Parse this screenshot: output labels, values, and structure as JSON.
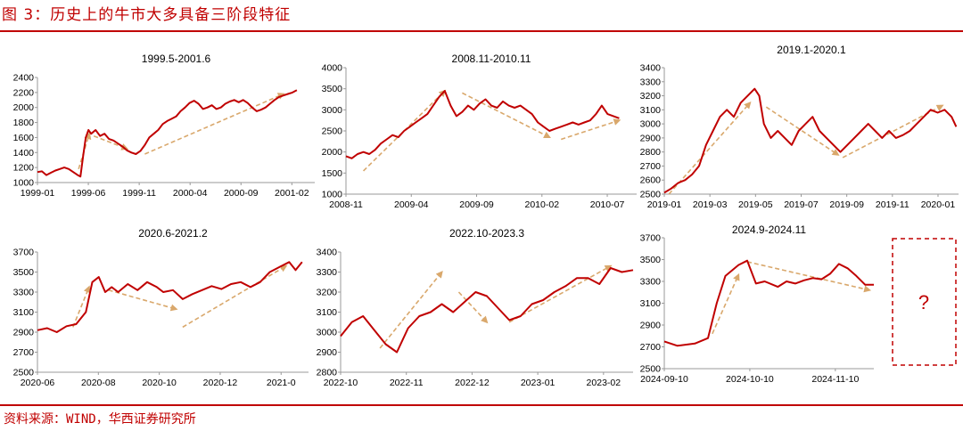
{
  "figure_title": "图 3：历史上的牛市大多具备三阶段特征",
  "source": "资料来源：WIND，华西证券研究所",
  "placeholder_label": "?",
  "colors": {
    "line": "#c00000",
    "arrow": "#d9a86c",
    "title": "#c00000"
  },
  "chart_data": [
    {
      "type": "line",
      "title": "1999.5-2001.6",
      "ylim": [
        1000,
        2400
      ],
      "y_ticks": [
        "1000",
        "1200",
        "1400",
        "1600",
        "1800",
        "2000",
        "2200",
        "2400"
      ],
      "x_ticks": [
        "1999-01",
        "1999-06",
        "1999-11",
        "2000-04",
        "2000-09",
        "2001-02"
      ],
      "xlim": [
        0,
        31
      ],
      "points": [
        [
          0,
          1140
        ],
        [
          0.5,
          1150
        ],
        [
          1,
          1100
        ],
        [
          1.5,
          1130
        ],
        [
          2,
          1160
        ],
        [
          2.5,
          1180
        ],
        [
          3,
          1200
        ],
        [
          3.5,
          1180
        ],
        [
          4,
          1140
        ],
        [
          4.5,
          1100
        ],
        [
          4.8,
          1080
        ],
        [
          5.1,
          1350
        ],
        [
          5.4,
          1600
        ],
        [
          5.7,
          1700
        ],
        [
          6,
          1650
        ],
        [
          6.5,
          1700
        ],
        [
          7,
          1620
        ],
        [
          7.5,
          1650
        ],
        [
          8,
          1580
        ],
        [
          8.5,
          1560
        ],
        [
          9,
          1520
        ],
        [
          9.5,
          1480
        ],
        [
          10,
          1430
        ],
        [
          10.5,
          1400
        ],
        [
          11,
          1380
        ],
        [
          11.5,
          1420
        ],
        [
          12,
          1500
        ],
        [
          12.5,
          1600
        ],
        [
          13,
          1650
        ],
        [
          13.5,
          1700
        ],
        [
          14,
          1780
        ],
        [
          14.5,
          1820
        ],
        [
          15,
          1850
        ],
        [
          15.5,
          1880
        ],
        [
          16,
          1950
        ],
        [
          16.5,
          2000
        ],
        [
          17,
          2060
        ],
        [
          17.5,
          2090
        ],
        [
          18,
          2050
        ],
        [
          18.5,
          1980
        ],
        [
          19,
          2000
        ],
        [
          19.5,
          2030
        ],
        [
          20,
          1980
        ],
        [
          20.5,
          2000
        ],
        [
          21,
          2050
        ],
        [
          21.5,
          2080
        ],
        [
          22,
          2100
        ],
        [
          22.5,
          2070
        ],
        [
          23,
          2100
        ],
        [
          23.5,
          2060
        ],
        [
          24,
          2000
        ],
        [
          24.5,
          1950
        ],
        [
          25,
          1970
        ],
        [
          25.5,
          2000
        ],
        [
          26,
          2050
        ],
        [
          26.5,
          2100
        ],
        [
          27,
          2140
        ],
        [
          27.5,
          2160
        ],
        [
          28,
          2180
        ],
        [
          28.5,
          2200
        ],
        [
          29,
          2230
        ]
      ],
      "arrows": [
        [
          [
            4.6,
            1180
          ],
          [
            5.8,
            1650
          ]
        ],
        [
          [
            6.3,
            1620
          ],
          [
            10,
            1450
          ]
        ],
        [
          [
            12,
            1380
          ],
          [
            27.5,
            2180
          ]
        ]
      ]
    },
    {
      "type": "line",
      "title": "2008.11-2010.11",
      "ylim": [
        1000,
        4000
      ],
      "y_ticks": [
        "1000",
        "1500",
        "2000",
        "2500",
        "3000",
        "3500",
        "4000"
      ],
      "x_ticks": [
        "2008-11",
        "2009-04",
        "2009-09",
        "2010-02",
        "2010-07"
      ],
      "xlim": [
        0,
        25
      ],
      "points": [
        [
          0,
          1900
        ],
        [
          0.5,
          1850
        ],
        [
          1,
          1950
        ],
        [
          1.5,
          2000
        ],
        [
          2,
          1950
        ],
        [
          2.5,
          2050
        ],
        [
          3,
          2200
        ],
        [
          3.5,
          2300
        ],
        [
          4,
          2400
        ],
        [
          4.5,
          2350
        ],
        [
          5,
          2500
        ],
        [
          5.5,
          2600
        ],
        [
          6,
          2700
        ],
        [
          6.5,
          2800
        ],
        [
          7,
          2900
        ],
        [
          7.5,
          3100
        ],
        [
          8,
          3300
        ],
        [
          8.5,
          3450
        ],
        [
          9,
          3100
        ],
        [
          9.5,
          2850
        ],
        [
          10,
          2950
        ],
        [
          10.5,
          3100
        ],
        [
          11,
          3000
        ],
        [
          11.5,
          3150
        ],
        [
          12,
          3250
        ],
        [
          12.5,
          3100
        ],
        [
          13,
          3050
        ],
        [
          13.5,
          3200
        ],
        [
          14,
          3100
        ],
        [
          14.5,
          3050
        ],
        [
          15,
          3100
        ],
        [
          15.5,
          3000
        ],
        [
          16,
          2900
        ],
        [
          16.5,
          2700
        ],
        [
          17,
          2600
        ],
        [
          17.5,
          2500
        ],
        [
          18,
          2550
        ],
        [
          18.5,
          2600
        ],
        [
          19,
          2650
        ],
        [
          19.5,
          2700
        ],
        [
          20,
          2650
        ],
        [
          20.5,
          2700
        ],
        [
          21,
          2750
        ],
        [
          21.5,
          2900
        ],
        [
          22,
          3100
        ],
        [
          22.5,
          2900
        ],
        [
          23,
          2850
        ],
        [
          23.5,
          2800
        ]
      ],
      "arrows": [
        [
          [
            1.5,
            1550
          ],
          [
            8.5,
            3450
          ]
        ],
        [
          [
            10,
            3400
          ],
          [
            17.5,
            2350
          ]
        ],
        [
          [
            18.5,
            2300
          ],
          [
            23.5,
            2750
          ]
        ]
      ]
    },
    {
      "type": "line",
      "title": "2019.1-2020.1",
      "ylim": [
        2500,
        3400
      ],
      "y_ticks": [
        "2500",
        "2600",
        "2700",
        "2800",
        "2900",
        "3000",
        "3100",
        "3200",
        "3300",
        "3400"
      ],
      "x_ticks": [
        "2019-01",
        "2019-03",
        "2019-05",
        "2019-07",
        "2019-09",
        "2019-11",
        "2020-01"
      ],
      "xlim": [
        0,
        12.7
      ],
      "points": [
        [
          0,
          2510
        ],
        [
          0.3,
          2540
        ],
        [
          0.6,
          2580
        ],
        [
          0.9,
          2600
        ],
        [
          1.2,
          2640
        ],
        [
          1.5,
          2700
        ],
        [
          1.8,
          2850
        ],
        [
          2.1,
          2950
        ],
        [
          2.4,
          3050
        ],
        [
          2.7,
          3100
        ],
        [
          3,
          3050
        ],
        [
          3.3,
          3150
        ],
        [
          3.6,
          3200
        ],
        [
          3.9,
          3250
        ],
        [
          4.1,
          3200
        ],
        [
          4.3,
          3000
        ],
        [
          4.6,
          2900
        ],
        [
          4.9,
          2950
        ],
        [
          5.2,
          2900
        ],
        [
          5.5,
          2850
        ],
        [
          5.8,
          2950
        ],
        [
          6.1,
          3000
        ],
        [
          6.4,
          3050
        ],
        [
          6.7,
          2950
        ],
        [
          7,
          2900
        ],
        [
          7.3,
          2850
        ],
        [
          7.6,
          2800
        ],
        [
          7.9,
          2850
        ],
        [
          8.2,
          2900
        ],
        [
          8.5,
          2950
        ],
        [
          8.8,
          3000
        ],
        [
          9.1,
          2950
        ],
        [
          9.4,
          2900
        ],
        [
          9.7,
          2950
        ],
        [
          10,
          2900
        ],
        [
          10.3,
          2920
        ],
        [
          10.6,
          2950
        ],
        [
          10.9,
          3000
        ],
        [
          11.2,
          3050
        ],
        [
          11.5,
          3100
        ],
        [
          11.8,
          3080
        ],
        [
          12.1,
          3100
        ],
        [
          12.4,
          3050
        ],
        [
          12.6,
          2980
        ]
      ],
      "arrows": [
        [
          [
            0.2,
            2500
          ],
          [
            3.7,
            3150
          ]
        ],
        [
          [
            4.4,
            3120
          ],
          [
            7.5,
            2780
          ]
        ],
        [
          [
            7.7,
            2760
          ],
          [
            12,
            3130
          ]
        ]
      ]
    },
    {
      "type": "line",
      "title": "2020.6-2021.2",
      "ylim": [
        2500,
        3700
      ],
      "y_ticks": [
        "2500",
        "2700",
        "2900",
        "3100",
        "3300",
        "3500",
        "3700"
      ],
      "x_ticks": [
        "2020-06",
        "2020-08",
        "2020-10",
        "2020-12",
        "2021-0"
      ],
      "xlim": [
        0,
        8.4
      ],
      "points": [
        [
          0,
          2920
        ],
        [
          0.3,
          2940
        ],
        [
          0.6,
          2900
        ],
        [
          0.9,
          2960
        ],
        [
          1.2,
          2980
        ],
        [
          1.5,
          3100
        ],
        [
          1.7,
          3400
        ],
        [
          1.9,
          3450
        ],
        [
          2.1,
          3300
        ],
        [
          2.3,
          3350
        ],
        [
          2.5,
          3300
        ],
        [
          2.8,
          3380
        ],
        [
          3.1,
          3320
        ],
        [
          3.4,
          3400
        ],
        [
          3.7,
          3350
        ],
        [
          3.9,
          3300
        ],
        [
          4.2,
          3320
        ],
        [
          4.5,
          3230
        ],
        [
          4.8,
          3280
        ],
        [
          5.1,
          3320
        ],
        [
          5.4,
          3360
        ],
        [
          5.7,
          3330
        ],
        [
          6,
          3380
        ],
        [
          6.3,
          3400
        ],
        [
          6.6,
          3350
        ],
        [
          6.9,
          3400
        ],
        [
          7.2,
          3500
        ],
        [
          7.5,
          3550
        ],
        [
          7.8,
          3600
        ],
        [
          8,
          3520
        ],
        [
          8.2,
          3600
        ]
      ],
      "arrows": [
        [
          [
            1.1,
            2950
          ],
          [
            1.6,
            3350
          ]
        ],
        [
          [
            2.2,
            3320
          ],
          [
            4.3,
            3130
          ]
        ],
        [
          [
            4.5,
            2950
          ],
          [
            7.7,
            3560
          ]
        ]
      ]
    },
    {
      "type": "line",
      "title": "2022.10-2023.3",
      "ylim": [
        2800,
        3400
      ],
      "y_ticks": [
        "2800",
        "2900",
        "3000",
        "3100",
        "3200",
        "3300",
        "3400"
      ],
      "x_ticks": [
        "2022-10",
        "2022-11",
        "2022-12",
        "2023-01",
        "2023-02"
      ],
      "xlim": [
        0,
        5.2
      ],
      "points": [
        [
          0,
          2980
        ],
        [
          0.2,
          3050
        ],
        [
          0.4,
          3080
        ],
        [
          0.6,
          3010
        ],
        [
          0.8,
          2940
        ],
        [
          1,
          2900
        ],
        [
          1.2,
          3020
        ],
        [
          1.4,
          3080
        ],
        [
          1.6,
          3100
        ],
        [
          1.8,
          3140
        ],
        [
          2,
          3100
        ],
        [
          2.2,
          3150
        ],
        [
          2.4,
          3200
        ],
        [
          2.6,
          3180
        ],
        [
          2.8,
          3120
        ],
        [
          3,
          3060
        ],
        [
          3.2,
          3080
        ],
        [
          3.4,
          3140
        ],
        [
          3.6,
          3160
        ],
        [
          3.8,
          3200
        ],
        [
          4,
          3230
        ],
        [
          4.2,
          3270
        ],
        [
          4.4,
          3270
        ],
        [
          4.6,
          3240
        ],
        [
          4.8,
          3320
        ],
        [
          5,
          3300
        ],
        [
          5.2,
          3310
        ]
      ],
      "arrows": [
        [
          [
            0.7,
            2920
          ],
          [
            1.8,
            3300
          ]
        ],
        [
          [
            2.1,
            3200
          ],
          [
            2.6,
            3050
          ]
        ],
        [
          [
            3,
            3050
          ],
          [
            4.8,
            3330
          ]
        ]
      ]
    },
    {
      "type": "line",
      "title": "2024.9-2024.11",
      "ylim": [
        2500,
        3700
      ],
      "y_ticks": [
        "2500",
        "2700",
        "2900",
        "3100",
        "3300",
        "3500",
        "3700"
      ],
      "x_ticks": [
        "2024-09-10",
        "2024-10-10",
        "2024-11-10"
      ],
      "xlim": [
        0,
        2.4
      ],
      "points": [
        [
          0,
          2750
        ],
        [
          0.15,
          2710
        ],
        [
          0.35,
          2730
        ],
        [
          0.5,
          2780
        ],
        [
          0.6,
          3100
        ],
        [
          0.7,
          3350
        ],
        [
          0.85,
          3450
        ],
        [
          0.95,
          3490
        ],
        [
          1.05,
          3280
        ],
        [
          1.15,
          3300
        ],
        [
          1.3,
          3250
        ],
        [
          1.4,
          3300
        ],
        [
          1.5,
          3280
        ],
        [
          1.6,
          3310
        ],
        [
          1.7,
          3330
        ],
        [
          1.8,
          3320
        ],
        [
          1.9,
          3370
        ],
        [
          2,
          3460
        ],
        [
          2.1,
          3420
        ],
        [
          2.2,
          3350
        ],
        [
          2.3,
          3270
        ],
        [
          2.4,
          3270
        ]
      ],
      "arrows": [
        [
          [
            0.55,
            2820
          ],
          [
            0.85,
            3360
          ]
        ],
        [
          [
            0.95,
            3480
          ],
          [
            2.35,
            3220
          ]
        ]
      ]
    }
  ]
}
